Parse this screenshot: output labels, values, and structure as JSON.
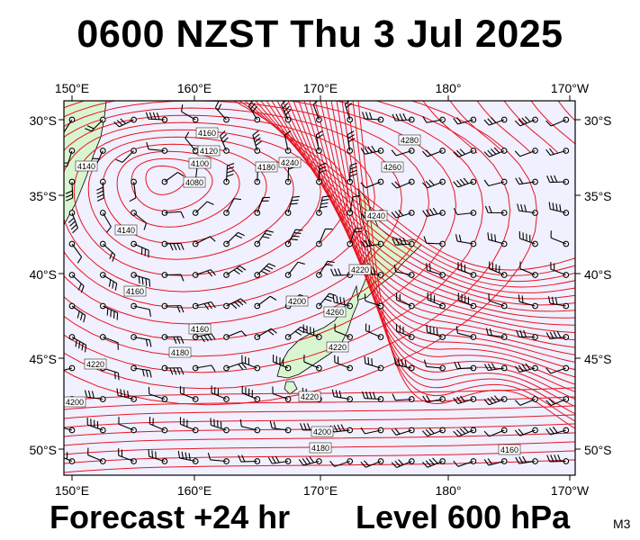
{
  "title": "0600 NZST Thu 3 Jul 2025",
  "footer": {
    "forecast": "Forecast +24 hr",
    "level": "Level 600 hPa",
    "code": "M3"
  },
  "map": {
    "top_lon_labels": [
      "150°E",
      "160°E",
      "170°E",
      "180°",
      "170°W"
    ],
    "bottom_lon_labels": [
      "150°E",
      "160°E",
      "170°E",
      "180°",
      "170°W"
    ],
    "left_lat_labels": [
      "30°S",
      "35°S",
      "40°S",
      "45°S",
      "50°S"
    ],
    "right_lat_labels": [
      "30°S",
      "35°S",
      "40°S",
      "45°S",
      "50°S"
    ],
    "contour_labels": [
      "4080",
      "4100",
      "4120",
      "4140",
      "4160",
      "4180",
      "4200",
      "4220",
      "4240",
      "4260",
      "4280"
    ],
    "colors": {
      "ocean": "#f0f0ff",
      "land": "#d9f5d0",
      "contour": "#e8141e",
      "coastline": "#000000"
    }
  }
}
